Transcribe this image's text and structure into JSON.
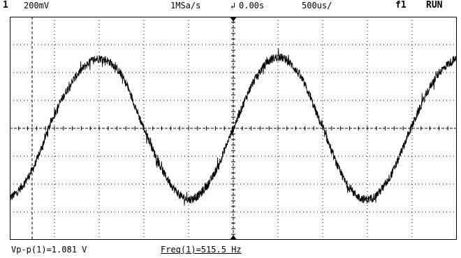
{
  "status": {
    "channel": "1",
    "volts_per_div": "200mV",
    "sample_rate": "1MSa/s",
    "trigger_delay": "0.00s",
    "time_per_div": "500us/",
    "trigger_mode": "f1",
    "run_state": "RUN"
  },
  "measurements": {
    "vpp": "Vp-p(1)=1.081 V",
    "freq": "Freq(1)=515.5 Hz"
  },
  "colors": {
    "background": "#ffffff",
    "trace": "#000000",
    "graticule": "#000000"
  },
  "chart_data": {
    "type": "line",
    "x_divisions": 10,
    "y_divisions": 8,
    "x_unit": "s",
    "y_unit": "V",
    "time_per_div_s": 0.0005,
    "volts_per_div_v": 0.2,
    "xlim_s": [
      -0.0025,
      0.0025
    ],
    "ylim_v": [
      -0.8,
      0.8
    ],
    "trigger_time_s": 0.0,
    "cursor_time_s": -0.00225,
    "series": [
      {
        "x_s": [
          -0.0025,
          -0.00225,
          -0.002,
          -0.00175,
          -0.0015,
          -0.00125,
          -0.001,
          -0.00075,
          -0.0005,
          -0.00025,
          0.0,
          0.00025,
          0.0005,
          0.00075,
          0.001,
          0.00125,
          0.0015,
          0.00175,
          0.002,
          0.00225,
          0.0025
        ],
        "y_v": [
          -0.5,
          -0.3,
          0.1,
          0.38,
          0.5,
          0.38,
          0.0,
          -0.35,
          -0.51,
          -0.37,
          0.0,
          0.36,
          0.51,
          0.37,
          0.0,
          -0.38,
          -0.51,
          -0.35,
          0.02,
          0.35,
          0.5
        ]
      }
    ]
  }
}
